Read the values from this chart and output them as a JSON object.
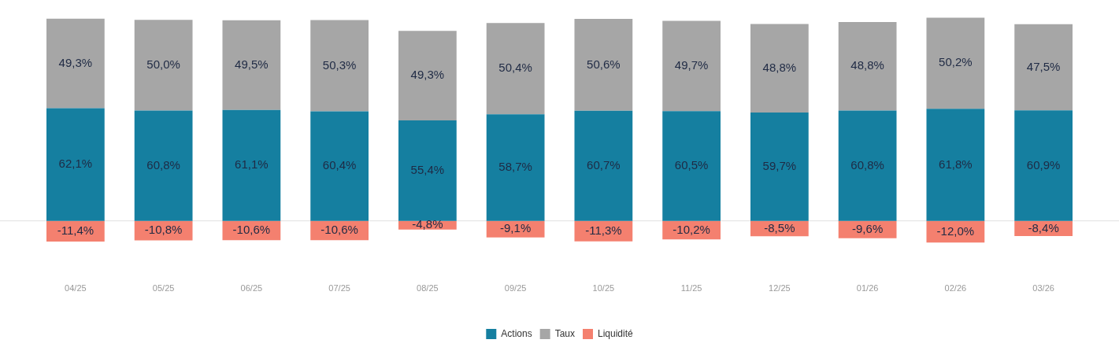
{
  "chart_data": {
    "type": "bar",
    "stacked": true,
    "categories": [
      "04/25",
      "05/25",
      "06/25",
      "07/25",
      "08/25",
      "09/25",
      "10/25",
      "11/25",
      "12/25",
      "01/26",
      "02/26",
      "03/26"
    ],
    "series": [
      {
        "name": "Actions",
        "color": "#157fa0",
        "values": [
          62.1,
          60.8,
          61.1,
          60.4,
          55.4,
          58.7,
          60.7,
          60.5,
          59.7,
          60.8,
          61.8,
          60.9
        ],
        "value_labels": [
          "62,1%",
          "60,8%",
          "61,1%",
          "60,4%",
          "55,4%",
          "58,7%",
          "60,7%",
          "60,5%",
          "59,7%",
          "60,8%",
          "61,8%",
          "60,9%"
        ]
      },
      {
        "name": "Taux",
        "color": "#a6a6a6",
        "values": [
          49.3,
          50.0,
          49.5,
          50.3,
          49.3,
          50.4,
          50.6,
          49.7,
          48.8,
          48.8,
          50.2,
          47.5
        ],
        "value_labels": [
          "49,3%",
          "50,0%",
          "49,5%",
          "50,3%",
          "49,3%",
          "50,4%",
          "50,6%",
          "49,7%",
          "48,8%",
          "48,8%",
          "50,2%",
          "47,5%"
        ]
      },
      {
        "name": "Liquidité",
        "color": "#f4806f",
        "values": [
          -11.4,
          -10.8,
          -10.6,
          -10.6,
          -4.8,
          -9.1,
          -11.3,
          -10.2,
          -8.5,
          -9.6,
          -12.0,
          -8.4
        ],
        "value_labels": [
          "-11,4%",
          "-10,8%",
          "-10,6%",
          "-10,6%",
          "-4,8%",
          "-9,1%",
          "-11,3%",
          "-10,2%",
          "-8,5%",
          "-9,6%",
          "-12,0%",
          "-8,4%"
        ]
      }
    ],
    "ref_lines": [
      {
        "axis": "y",
        "value": 0,
        "color": "#e0e0e0"
      }
    ],
    "grid": false,
    "legend": "bottom"
  }
}
